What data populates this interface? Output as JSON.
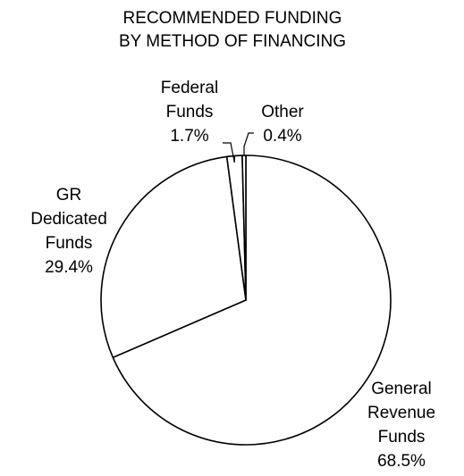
{
  "chart_data": {
    "type": "pie",
    "title_lines": [
      "RECOMMENDED FUNDING",
      "BY METHOD OF FINANCING"
    ],
    "slices": [
      {
        "label_lines": [
          "General",
          "Revenue",
          "Funds"
        ],
        "value": 68.5,
        "value_label": "68.5%"
      },
      {
        "label_lines": [
          "GR",
          "Dedicated",
          "Funds"
        ],
        "value": 29.4,
        "value_label": "29.4%"
      },
      {
        "label_lines": [
          "Federal",
          "Funds"
        ],
        "value": 1.7,
        "value_label": "1.7%"
      },
      {
        "label_lines": [
          "Other"
        ],
        "value": 0.4,
        "value_label": "0.4%"
      }
    ],
    "legend": "none",
    "slice_fill": "#ffffff",
    "outline_color": "#000000"
  }
}
